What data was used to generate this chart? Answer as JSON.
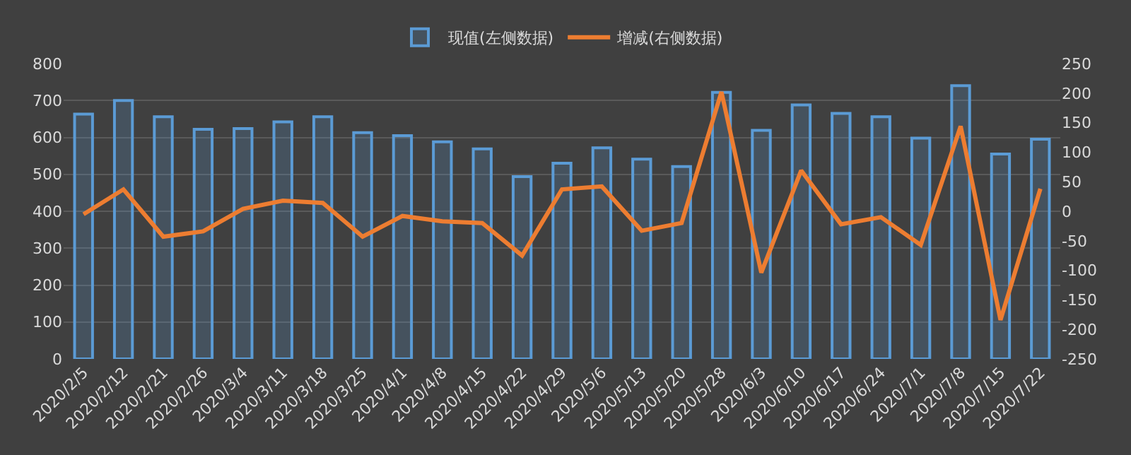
{
  "chart_data": {
    "type": "bar",
    "categories": [
      "2020/2/5",
      "2020/2/12",
      "2020/2/21",
      "2020/2/26",
      "2020/3/4",
      "2020/3/11",
      "2020/3/18",
      "2020/3/25",
      "2020/4/1",
      "2020/4/8",
      "2020/4/15",
      "2020/4/22",
      "2020/4/29",
      "2020/5/6",
      "2020/5/13",
      "2020/5/20",
      "2020/5/28",
      "2020/6/3",
      "2020/6/10",
      "2020/6/17",
      "2020/6/24",
      "2020/7/1",
      "2020/7/8",
      "2020/7/15",
      "2020/7/22"
    ],
    "series": [
      {
        "name": "现值(左侧数据)",
        "color": "#5b9bd5",
        "values": [
          663,
          700,
          656,
          622,
          624,
          642,
          656,
          613,
          605,
          588,
          569,
          494,
          530,
          572,
          541,
          521,
          722,
          619,
          688,
          665,
          656,
          598,
          740,
          555,
          595
        ]
      },
      {
        "name": "增减(右侧数据)",
        "type": "line",
        "axis": "y2",
        "color": "#ed7d31",
        "values": [
          -5,
          37,
          -43,
          -34,
          4,
          18,
          14,
          -43,
          -8,
          -17,
          -20,
          -75,
          37,
          42,
          -33,
          -20,
          202,
          -104,
          69,
          -22,
          -10,
          -57,
          144,
          -184,
          38
        ]
      }
    ],
    "ylim": [
      0,
      800
    ],
    "yticks": [
      0,
      100,
      200,
      300,
      400,
      500,
      600,
      700,
      800
    ],
    "y2lim": [
      -250,
      250
    ],
    "y2ticks": [
      -250,
      -200,
      -150,
      -100,
      -50,
      0,
      50,
      100,
      150,
      200,
      250
    ],
    "grid": "y",
    "legend": "top",
    "marker": "none",
    "line_style": "solid"
  }
}
